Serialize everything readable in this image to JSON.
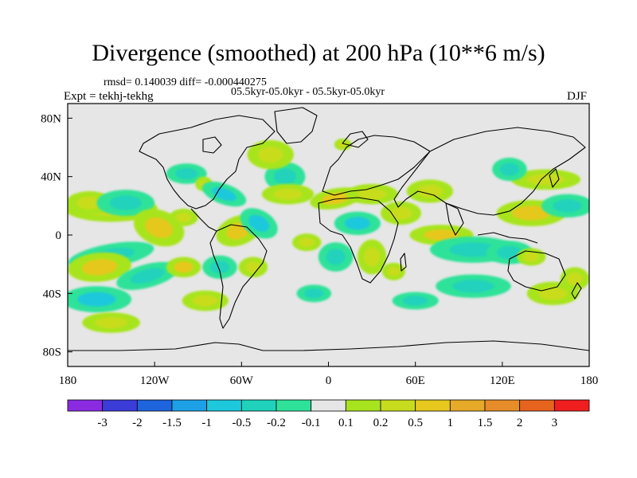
{
  "figure": {
    "title": "Divergence (smoothed) at 200 hPa (10**6 m/s)",
    "stats": "rmsd= 0.140039 diff= -0.000440275",
    "period": "05.5kyr-05.0kyr - 05.5kyr-05.0kyr",
    "experiment": "Expt = tekhj-tekhg",
    "season": "DJF"
  },
  "map": {
    "lon_range": [
      -180,
      180
    ],
    "lat_range": [
      -90,
      90
    ],
    "x_ticks": [
      {
        "value": -180,
        "label": "180"
      },
      {
        "value": -120,
        "label": "120W"
      },
      {
        "value": -60,
        "label": "60W"
      },
      {
        "value": 0,
        "label": "0"
      },
      {
        "value": 60,
        "label": "60E"
      },
      {
        "value": 120,
        "label": "120E"
      },
      {
        "value": 180,
        "label": "180"
      }
    ],
    "y_ticks": [
      {
        "value": 80,
        "label": "80N"
      },
      {
        "value": 40,
        "label": "40N"
      },
      {
        "value": 0,
        "label": "0"
      },
      {
        "value": -40,
        "label": "40S"
      },
      {
        "value": -80,
        "label": "80S"
      }
    ],
    "background_color": "#e6e6e6",
    "coast_color": "#000000",
    "colors": {
      "c_m3": "#8a2be2",
      "c_m2": "#3c3cd8",
      "c_m15": "#1e64dc",
      "c_m1": "#1ea0e6",
      "c_m05": "#1ec8dc",
      "c_m02": "#20d2bc",
      "c_m01": "#2ee29a",
      "c_0": "#e6e6e6",
      "c_01": "#a8e41e",
      "c_02": "#c8dc1e",
      "c_05": "#e6c81e",
      "c_1": "#e6aa28",
      "c_15": "#e68c28",
      "c_2": "#e6641e",
      "c_3": "#dc321e",
      "c_4": "#f01e1e"
    },
    "anomalies": [
      {
        "lon": -150,
        "lat": 18,
        "rlon": 32,
        "rlat": 9,
        "rot": 0,
        "value": 0.2
      },
      {
        "lon": -165,
        "lat": 22,
        "rlon": 16,
        "rlat": 8,
        "rot": 0,
        "value": 0.4
      },
      {
        "lon": -140,
        "lat": 22,
        "rlon": 20,
        "rlat": 9,
        "rot": 0,
        "value": -0.2
      },
      {
        "lon": -117,
        "lat": 5,
        "rlon": 18,
        "rlat": 12,
        "rot": 20,
        "value": 0.6
      },
      {
        "lon": -100,
        "lat": 12,
        "rlon": 10,
        "rlat": 6,
        "rot": 0,
        "value": 0.2
      },
      {
        "lon": -150,
        "lat": -14,
        "rlon": 30,
        "rlat": 8,
        "rot": -10,
        "value": -0.4
      },
      {
        "lon": -158,
        "lat": -22,
        "rlon": 22,
        "rlat": 10,
        "rot": -5,
        "value": 0.8
      },
      {
        "lon": -125,
        "lat": -28,
        "rlon": 22,
        "rlat": 8,
        "rot": -15,
        "value": -0.3
      },
      {
        "lon": -100,
        "lat": -22,
        "rlon": 12,
        "rlat": 7,
        "rot": 0,
        "value": 0.5
      },
      {
        "lon": -160,
        "lat": -44,
        "rlon": 24,
        "rlat": 9,
        "rot": 0,
        "value": -0.5
      },
      {
        "lon": -150,
        "lat": -60,
        "rlon": 20,
        "rlat": 7,
        "rot": 0,
        "value": 0.2
      },
      {
        "lon": -98,
        "lat": 42,
        "rlon": 14,
        "rlat": 7,
        "rot": 0,
        "value": -0.2
      },
      {
        "lon": -86,
        "lat": 35,
        "rlon": 6,
        "rlat": 5,
        "rot": 0,
        "value": 0.3
      },
      {
        "lon": -72,
        "lat": 28,
        "rlon": 16,
        "rlat": 7,
        "rot": 20,
        "value": -0.5
      },
      {
        "lon": -62,
        "lat": 3,
        "rlon": 16,
        "rlat": 10,
        "rot": -20,
        "value": 0.6
      },
      {
        "lon": -48,
        "lat": 8,
        "rlon": 14,
        "rlat": 9,
        "rot": 30,
        "value": -0.5
      },
      {
        "lon": -75,
        "lat": -22,
        "rlon": 12,
        "rlat": 8,
        "rot": 0,
        "value": -0.3
      },
      {
        "lon": -52,
        "lat": -22,
        "rlon": 10,
        "rlat": 7,
        "rot": 0,
        "value": 0.3
      },
      {
        "lon": -85,
        "lat": -45,
        "rlon": 16,
        "rlat": 7,
        "rot": 0,
        "value": 0.4
      },
      {
        "lon": -30,
        "lat": 40,
        "rlon": 14,
        "rlat": 10,
        "rot": 0,
        "value": -0.4
      },
      {
        "lon": -40,
        "lat": 55,
        "rlon": 16,
        "rlat": 10,
        "rot": 0,
        "value": 0.3
      },
      {
        "lon": -28,
        "lat": 28,
        "rlon": 18,
        "rlat": 7,
        "rot": 0,
        "value": 0.3
      },
      {
        "lon": 5,
        "lat": 25,
        "rlon": 18,
        "rlat": 7,
        "rot": -10,
        "value": 0.5
      },
      {
        "lon": 30,
        "lat": 28,
        "rlon": 18,
        "rlat": 7,
        "rot": 0,
        "value": 0.4
      },
      {
        "lon": 20,
        "lat": 8,
        "rlon": 16,
        "rlat": 8,
        "rot": 0,
        "value": -0.5
      },
      {
        "lon": 5,
        "lat": -15,
        "rlon": 12,
        "rlat": 10,
        "rot": 0,
        "value": -0.4
      },
      {
        "lon": -15,
        "lat": -5,
        "rlon": 10,
        "rlat": 6,
        "rot": 0,
        "value": 0.3
      },
      {
        "lon": 30,
        "lat": -15,
        "rlon": 10,
        "rlat": 12,
        "rot": 0,
        "value": 0.3
      },
      {
        "lon": 45,
        "lat": -25,
        "rlon": 8,
        "rlat": 6,
        "rot": 0,
        "value": 0.4
      },
      {
        "lon": 50,
        "lat": 15,
        "rlon": 14,
        "rlat": 8,
        "rot": 0,
        "value": 0.3
      },
      {
        "lon": 70,
        "lat": 30,
        "rlon": 16,
        "rlat": 8,
        "rot": 0,
        "value": 0.3
      },
      {
        "lon": 78,
        "lat": 0,
        "rlon": 22,
        "rlat": 7,
        "rot": 0,
        "value": 0.5
      },
      {
        "lon": 100,
        "lat": -10,
        "rlon": 30,
        "rlat": 9,
        "rot": 0,
        "value": -0.4
      },
      {
        "lon": 125,
        "lat": -12,
        "rlon": 16,
        "rlat": 8,
        "rot": 0,
        "value": -0.3
      },
      {
        "lon": 140,
        "lat": -15,
        "rlon": 10,
        "rlat": 6,
        "rot": 0,
        "value": 0.3
      },
      {
        "lon": 140,
        "lat": 15,
        "rlon": 24,
        "rlat": 9,
        "rot": 0,
        "value": 0.5
      },
      {
        "lon": 165,
        "lat": 20,
        "rlon": 18,
        "rlat": 8,
        "rot": 0,
        "value": -0.3
      },
      {
        "lon": 150,
        "lat": 38,
        "rlon": 24,
        "rlat": 7,
        "rot": 0,
        "value": 0.3
      },
      {
        "lon": 125,
        "lat": 45,
        "rlon": 12,
        "rlat": 8,
        "rot": 0,
        "value": -0.2
      },
      {
        "lon": 100,
        "lat": -35,
        "rlon": 26,
        "rlat": 8,
        "rot": 0,
        "value": -0.4
      },
      {
        "lon": 155,
        "lat": -40,
        "rlon": 18,
        "rlat": 8,
        "rot": 0,
        "value": 0.2
      },
      {
        "lon": 170,
        "lat": -30,
        "rlon": 10,
        "rlat": 8,
        "rot": 0,
        "value": 0.2
      },
      {
        "lon": 10,
        "lat": 62,
        "rlon": 6,
        "rlat": 4,
        "rot": 0,
        "value": 0.3
      },
      {
        "lon": -10,
        "lat": -40,
        "rlon": 12,
        "rlat": 6,
        "rot": 0,
        "value": -0.3
      },
      {
        "lon": 60,
        "lat": -45,
        "rlon": 16,
        "rlat": 6,
        "rot": 0,
        "value": -0.3
      }
    ]
  },
  "colorbar": {
    "labels": [
      "-3",
      "-2",
      "-1.5",
      "-1",
      "-0.5",
      "-0.2",
      "-0.1",
      "0.1",
      "0.2",
      "0.5",
      "1",
      "1.5",
      "2",
      "3"
    ],
    "box_colors": [
      "#8a2be2",
      "#3c3cd8",
      "#1e64dc",
      "#1ea0e6",
      "#1ec8dc",
      "#20d2bc",
      "#2ee29a",
      "#e6e6e6",
      "#a8e41e",
      "#c8dc1e",
      "#e6c81e",
      "#e6aa28",
      "#e68c28",
      "#e6641e",
      "#f01e1e"
    ]
  }
}
